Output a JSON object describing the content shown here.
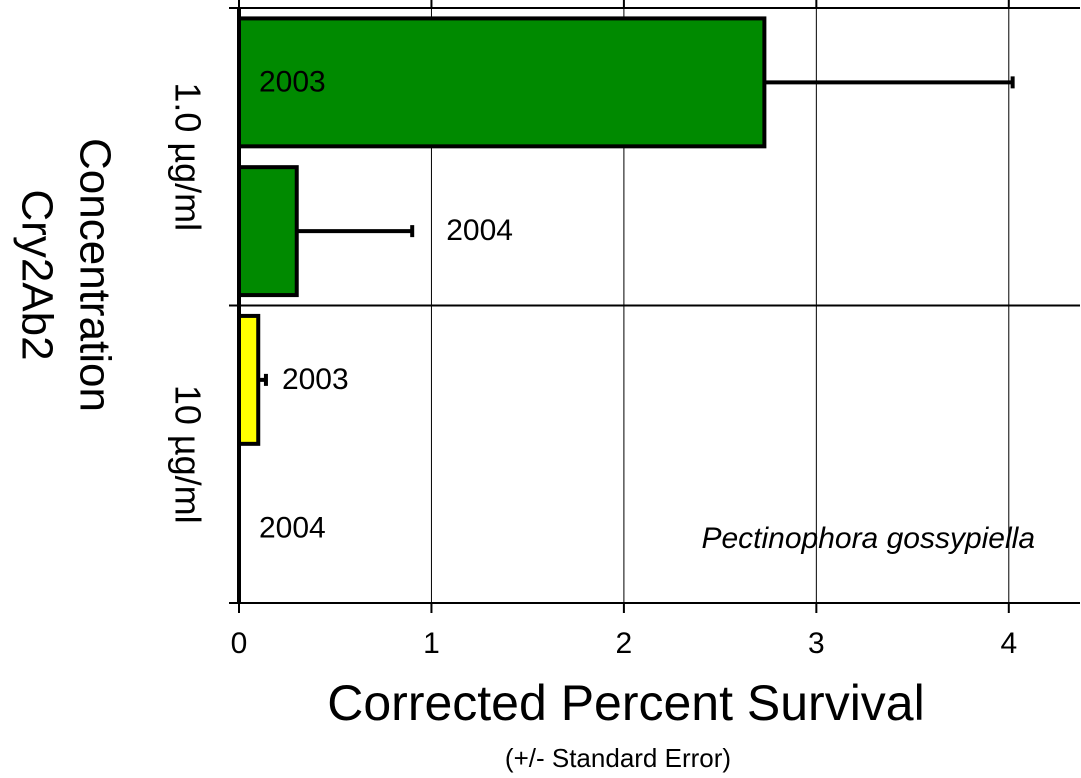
{
  "chart_data": {
    "type": "hbar",
    "title": "Corrected Percent Survival",
    "subtitle": "(+/- Standard Error)",
    "y_label_lines": [
      "Concentration",
      "Cry2Ab2"
    ],
    "groups": [
      "1.0 µg/ml",
      "10 µg/ml"
    ],
    "categories": [
      "2003",
      "2004",
      "2003",
      "2004"
    ],
    "values": [
      2.73,
      0.3,
      0.1,
      0
    ],
    "errors": [
      1.29,
      0.6,
      0.04,
      null
    ],
    "colors": [
      "#008a00",
      "#008a00",
      "#ffff00",
      "#ffff00"
    ],
    "annotation": "Pectinophora gossypiella",
    "xlim": [
      0,
      4.37
    ],
    "xticks": [
      0,
      1,
      2,
      3,
      4
    ],
    "grid": true
  }
}
